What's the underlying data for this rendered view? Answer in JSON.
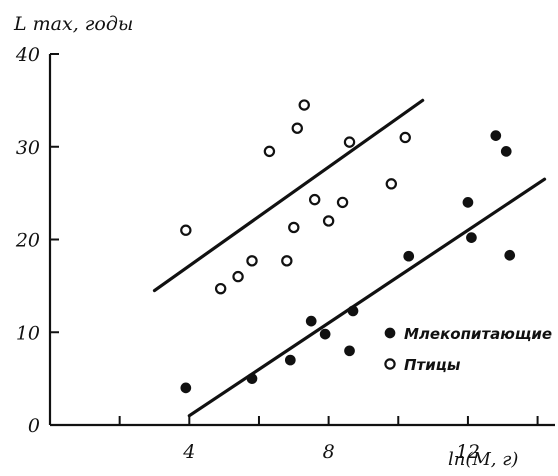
{
  "chart_data": {
    "type": "scatter",
    "ylabel": "L max, годы",
    "xlabel": "ln(M, г)",
    "xlim": [
      0,
      14.5
    ],
    "ylim": [
      0,
      40
    ],
    "x_ticks": [
      4,
      8,
      12
    ],
    "y_ticks": [
      0,
      10,
      20,
      30,
      40
    ],
    "x_tick_labels": [
      "4",
      "8",
      "12"
    ],
    "y_tick_labels": [
      "0",
      "10",
      "20",
      "30",
      "40"
    ],
    "legend_position": "bottom-right",
    "series": [
      {
        "name": "Млекопитающие",
        "marker": "filled",
        "points": [
          [
            3.9,
            4
          ],
          [
            5.8,
            5
          ],
          [
            6.9,
            7
          ],
          [
            7.5,
            11.2
          ],
          [
            7.9,
            9.8
          ],
          [
            8.6,
            8
          ],
          [
            8.7,
            12.3
          ],
          [
            10.3,
            18.2
          ],
          [
            12.0,
            24
          ],
          [
            12.1,
            20.2
          ],
          [
            12.8,
            31.2
          ],
          [
            13.1,
            29.5
          ],
          [
            13.2,
            18.3
          ]
        ],
        "fit_line": [
          [
            4.0,
            1.0
          ],
          [
            14.2,
            26.5
          ]
        ]
      },
      {
        "name": "Птицы",
        "marker": "open",
        "points": [
          [
            3.9,
            21
          ],
          [
            4.9,
            14.7
          ],
          [
            5.4,
            16
          ],
          [
            5.8,
            17.7
          ],
          [
            6.3,
            29.5
          ],
          [
            6.8,
            17.7
          ],
          [
            7.0,
            21.3
          ],
          [
            7.1,
            32
          ],
          [
            7.3,
            34.5
          ],
          [
            7.6,
            24.3
          ],
          [
            8.0,
            22
          ],
          [
            8.4,
            24
          ],
          [
            8.6,
            30.5
          ],
          [
            9.8,
            26
          ],
          [
            10.2,
            31
          ]
        ],
        "fit_line": [
          [
            3.0,
            14.5
          ],
          [
            10.7,
            35.0
          ]
        ]
      }
    ]
  }
}
